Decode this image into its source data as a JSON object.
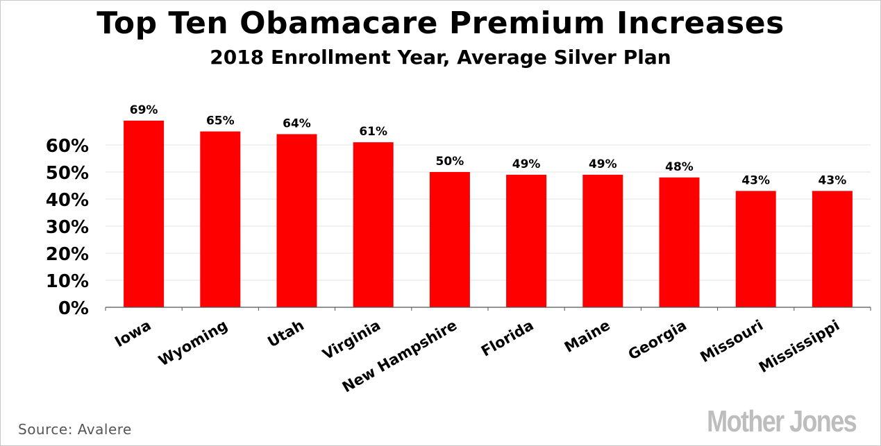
{
  "chart_data": {
    "type": "bar",
    "title": "Top Ten Obamacare Premium Increases",
    "subtitle": "2018 Enrollment Year, Average Silver Plan",
    "categories": [
      "Iowa",
      "Wyoming",
      "Utah",
      "Virginia",
      "New Hampshire",
      "Florida",
      "Maine",
      "Georgia",
      "Missouri",
      "Mississippi"
    ],
    "values": [
      69,
      65,
      64,
      61,
      50,
      49,
      49,
      48,
      43,
      43
    ],
    "value_labels": [
      "69%",
      "65%",
      "64%",
      "61%",
      "50%",
      "49%",
      "49%",
      "48%",
      "43%",
      "43%"
    ],
    "ylim": [
      0,
      70
    ],
    "yticks": [
      0,
      10,
      20,
      30,
      40,
      50,
      60
    ],
    "ytick_labels": [
      "0%",
      "10%",
      "20%",
      "30%",
      "40%",
      "50%",
      "60%"
    ],
    "xlabel": "",
    "ylabel": "",
    "grid": true,
    "bar_color": "#ff0000",
    "source": "Source:  Avalere",
    "logo": "Mother Jones"
  }
}
